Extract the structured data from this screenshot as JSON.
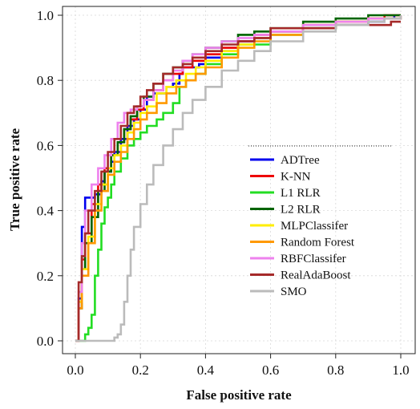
{
  "chart_data": {
    "type": "line",
    "title": "",
    "xlabel": "False positive rate",
    "ylabel": "True positive rate",
    "xlim": [
      0,
      1
    ],
    "ylim": [
      0,
      1
    ],
    "x_ticks": [
      "0.0",
      "0.2",
      "0.4",
      "0.6",
      "0.8",
      "1.0"
    ],
    "y_ticks": [
      "0.0",
      "0.2",
      "0.4",
      "0.6",
      "0.8",
      "1.0"
    ],
    "grid": true,
    "legend_position": "center-right",
    "series": [
      {
        "name": "ADTree",
        "color": "#0000ee",
        "x": [
          0,
          0.01,
          0.02,
          0.02,
          0.03,
          0.03,
          0.06,
          0.06,
          0.08,
          0.09,
          0.11,
          0.12,
          0.14,
          0.16,
          0.18,
          0.2,
          0.22,
          0.24,
          0.26,
          0.28,
          0.3,
          0.32,
          0.33,
          0.36,
          0.38,
          0.4,
          0.45,
          0.5,
          0.55,
          0.6,
          0.7,
          0.8,
          0.86,
          0.9,
          0.95,
          0.98
        ],
        "y": [
          0,
          0.13,
          0.3,
          0.35,
          0.38,
          0.44,
          0.44,
          0.45,
          0.49,
          0.52,
          0.55,
          0.58,
          0.62,
          0.66,
          0.68,
          0.71,
          0.75,
          0.76,
          0.76,
          0.78,
          0.79,
          0.82,
          0.84,
          0.84,
          0.85,
          0.87,
          0.89,
          0.92,
          0.93,
          0.95,
          0.96,
          0.97,
          0.97,
          0.98,
          0.99,
          1.0
        ]
      },
      {
        "name": "K-NN",
        "color": "#ee0000",
        "x": [
          0,
          0.01,
          0.02,
          0.03,
          0.05,
          0.07,
          0.09,
          0.11,
          0.13,
          0.15,
          0.17,
          0.19,
          0.21,
          0.24,
          0.27,
          0.3,
          0.33,
          0.36,
          0.4,
          0.45,
          0.5,
          0.55,
          0.6,
          0.7,
          0.8,
          0.9,
          0.95,
          1.0
        ],
        "y": [
          0,
          0.12,
          0.25,
          0.33,
          0.42,
          0.48,
          0.53,
          0.57,
          0.61,
          0.65,
          0.68,
          0.71,
          0.74,
          0.77,
          0.8,
          0.82,
          0.84,
          0.86,
          0.88,
          0.9,
          0.92,
          0.94,
          0.95,
          0.97,
          0.98,
          0.99,
          1.0,
          1.0
        ]
      },
      {
        "name": "L1 RLR",
        "color": "#22dd22",
        "x": [
          0,
          0.02,
          0.03,
          0.04,
          0.05,
          0.06,
          0.06,
          0.07,
          0.08,
          0.09,
          0.1,
          0.11,
          0.12,
          0.14,
          0.16,
          0.18,
          0.2,
          0.22,
          0.25,
          0.27,
          0.3,
          0.32,
          0.34,
          0.37,
          0.4,
          0.45,
          0.5,
          0.6,
          0.7,
          0.8,
          0.9,
          1.0
        ],
        "y": [
          0,
          0.0,
          0.02,
          0.04,
          0.08,
          0.15,
          0.2,
          0.28,
          0.36,
          0.41,
          0.44,
          0.48,
          0.52,
          0.56,
          0.6,
          0.62,
          0.64,
          0.66,
          0.68,
          0.7,
          0.73,
          0.78,
          0.8,
          0.82,
          0.85,
          0.88,
          0.91,
          0.94,
          0.96,
          0.98,
          0.99,
          1.0
        ]
      },
      {
        "name": "L2 RLR",
        "color": "#006400",
        "x": [
          0,
          0.01,
          0.02,
          0.03,
          0.05,
          0.07,
          0.09,
          0.11,
          0.13,
          0.15,
          0.17,
          0.19,
          0.21,
          0.24,
          0.27,
          0.3,
          0.33,
          0.36,
          0.4,
          0.45,
          0.5,
          0.55,
          0.6,
          0.7,
          0.8,
          0.9,
          1.0
        ],
        "y": [
          0,
          0.1,
          0.22,
          0.3,
          0.38,
          0.46,
          0.52,
          0.57,
          0.61,
          0.65,
          0.69,
          0.72,
          0.75,
          0.79,
          0.82,
          0.84,
          0.86,
          0.88,
          0.9,
          0.92,
          0.94,
          0.95,
          0.96,
          0.98,
          0.99,
          1.0,
          1.0
        ]
      },
      {
        "name": "MLPClassifer",
        "color": "#ffee00",
        "x": [
          0,
          0.01,
          0.02,
          0.04,
          0.06,
          0.08,
          0.1,
          0.12,
          0.14,
          0.16,
          0.18,
          0.2,
          0.22,
          0.25,
          0.28,
          0.31,
          0.34,
          0.37,
          0.4,
          0.45,
          0.5,
          0.55,
          0.6,
          0.7,
          0.8,
          0.9,
          1.0
        ],
        "y": [
          0,
          0.12,
          0.22,
          0.32,
          0.42,
          0.48,
          0.53,
          0.57,
          0.6,
          0.64,
          0.67,
          0.7,
          0.72,
          0.76,
          0.78,
          0.8,
          0.82,
          0.84,
          0.86,
          0.89,
          0.91,
          0.93,
          0.95,
          0.97,
          0.98,
          0.99,
          1.0
        ]
      },
      {
        "name": "Random Forest",
        "color": "#ff9900",
        "x": [
          0,
          0.01,
          0.02,
          0.04,
          0.06,
          0.08,
          0.1,
          0.12,
          0.14,
          0.16,
          0.18,
          0.2,
          0.22,
          0.25,
          0.28,
          0.31,
          0.34,
          0.37,
          0.4,
          0.45,
          0.5,
          0.55,
          0.6,
          0.7,
          0.8,
          0.9,
          1.0
        ],
        "y": [
          0,
          0.1,
          0.2,
          0.3,
          0.4,
          0.46,
          0.51,
          0.55,
          0.58,
          0.62,
          0.65,
          0.68,
          0.7,
          0.73,
          0.76,
          0.78,
          0.8,
          0.82,
          0.84,
          0.87,
          0.9,
          0.92,
          0.94,
          0.96,
          0.98,
          0.99,
          1.0
        ]
      },
      {
        "name": "RBFClassifer",
        "color": "#ee82ee",
        "x": [
          0,
          0.01,
          0.02,
          0.03,
          0.05,
          0.07,
          0.09,
          0.11,
          0.13,
          0.15,
          0.17,
          0.19,
          0.21,
          0.24,
          0.27,
          0.3,
          0.33,
          0.36,
          0.4,
          0.45,
          0.5,
          0.55,
          0.6,
          0.7,
          0.8,
          0.9,
          1.0
        ],
        "y": [
          0,
          0.15,
          0.3,
          0.4,
          0.48,
          0.53,
          0.57,
          0.62,
          0.67,
          0.7,
          0.71,
          0.72,
          0.74,
          0.77,
          0.8,
          0.83,
          0.86,
          0.88,
          0.9,
          0.92,
          0.93,
          0.94,
          0.95,
          0.97,
          0.98,
          0.99,
          1.0
        ]
      },
      {
        "name": "RealAdaBoost",
        "color": "#a52a2a",
        "x": [
          0,
          0.01,
          0.02,
          0.03,
          0.04,
          0.06,
          0.08,
          0.1,
          0.12,
          0.14,
          0.16,
          0.18,
          0.2,
          0.22,
          0.24,
          0.27,
          0.3,
          0.33,
          0.36,
          0.4,
          0.45,
          0.5,
          0.55,
          0.6,
          0.7,
          0.8,
          0.9,
          0.97,
          1.0
        ],
        "y": [
          0,
          0.18,
          0.26,
          0.33,
          0.4,
          0.46,
          0.52,
          0.58,
          0.62,
          0.66,
          0.7,
          0.72,
          0.75,
          0.77,
          0.79,
          0.82,
          0.84,
          0.85,
          0.87,
          0.89,
          0.91,
          0.92,
          0.93,
          0.96,
          0.96,
          0.97,
          0.97,
          0.98,
          0.98
        ]
      },
      {
        "name": "SMO",
        "color": "#bbbbbb",
        "x": [
          0,
          0.05,
          0.1,
          0.12,
          0.13,
          0.14,
          0.15,
          0.16,
          0.17,
          0.18,
          0.2,
          0.22,
          0.24,
          0.27,
          0.3,
          0.33,
          0.36,
          0.4,
          0.45,
          0.5,
          0.55,
          0.6,
          0.7,
          0.8,
          0.9,
          0.95,
          1.0
        ],
        "y": [
          0,
          0.0,
          0.0,
          0.01,
          0.02,
          0.05,
          0.12,
          0.2,
          0.28,
          0.35,
          0.42,
          0.48,
          0.54,
          0.6,
          0.65,
          0.7,
          0.74,
          0.78,
          0.83,
          0.86,
          0.89,
          0.92,
          0.95,
          0.97,
          0.98,
          0.99,
          1.0
        ]
      }
    ]
  }
}
